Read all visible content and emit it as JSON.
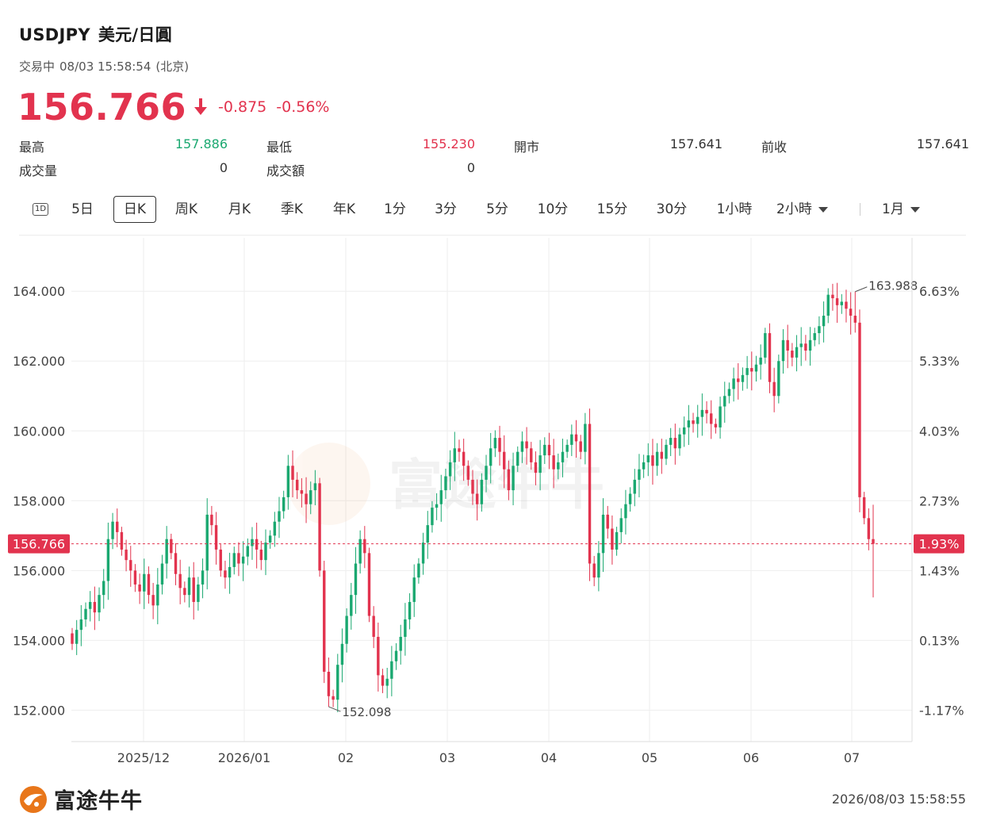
{
  "header": {
    "symbol": "USDJPY",
    "name": "美元/日圓"
  },
  "status": {
    "state": "交易中",
    "datetime": "08/03 15:58:54",
    "zone": "(北京)"
  },
  "quote": {
    "price": "156.766",
    "change": "-0.875",
    "change_pct": "-0.56%",
    "direction": "down"
  },
  "stats": [
    {
      "label": "最高",
      "value": "157.886"
    },
    {
      "label": "最低",
      "value": "155.230"
    },
    {
      "label": "開市",
      "value": "157.641"
    },
    {
      "label": "前收",
      "value": "157.641"
    },
    {
      "label": "成交量",
      "value": "0"
    },
    {
      "label": "成交額",
      "value": "0"
    }
  ],
  "tabs": [
    {
      "label": "1D"
    },
    {
      "label": "5日"
    },
    {
      "label": "日K",
      "active": true
    },
    {
      "label": "周K"
    },
    {
      "label": "月K"
    },
    {
      "label": "季K"
    },
    {
      "label": "年K"
    },
    {
      "label": "1分"
    },
    {
      "label": "3分"
    },
    {
      "label": "5分"
    },
    {
      "label": "10分"
    },
    {
      "label": "15分"
    },
    {
      "label": "30分"
    },
    {
      "label": "1小時"
    },
    {
      "label": "2小時"
    },
    {
      "label": "1月"
    }
  ],
  "colors": {
    "up": "#1aa870",
    "down": "#e2334e",
    "grid": "#eeeeee",
    "text": "#1a1a1a"
  },
  "chart_data": {
    "type": "candlestick",
    "x_tick_labels": [
      "2025/12",
      "2026/01",
      "02",
      "03",
      "04",
      "05",
      "06",
      "07"
    ],
    "y_tick_labels": [
      "164.000",
      "162.000",
      "160.000",
      "158.000",
      "156.000",
      "154.000",
      "152.000"
    ],
    "y_right_tick_labels": [
      "6.63%",
      "5.33%",
      "4.03%",
      "2.73%",
      "1.43%",
      "0.13%",
      "-1.17%"
    ],
    "ylim": [
      151.1,
      165.3
    ],
    "reference_line": {
      "value": 156.766,
      "label": "156.766",
      "pct_label": "1.93%"
    },
    "annotations": [
      {
        "label": "163.988",
        "value": 163.988,
        "type": "high"
      },
      {
        "label": "152.098",
        "value": 152.098,
        "type": "low"
      }
    ],
    "closes": [
      153.9,
      154.3,
      154.6,
      154.9,
      155.1,
      154.8,
      155.3,
      155.7,
      156.9,
      157.4,
      157.1,
      156.6,
      156.3,
      156.0,
      155.6,
      155.4,
      155.9,
      155.3,
      155.0,
      155.6,
      156.2,
      156.9,
      156.5,
      155.9,
      155.5,
      155.3,
      155.8,
      155.1,
      155.6,
      156.0,
      157.6,
      157.3,
      156.6,
      156.0,
      155.8,
      156.1,
      156.5,
      156.2,
      156.4,
      156.7,
      156.9,
      156.6,
      156.3,
      156.8,
      157.0,
      157.4,
      157.7,
      158.1,
      159.0,
      158.6,
      158.3,
      158.2,
      157.9,
      158.3,
      158.5,
      156.0,
      153.1,
      152.4,
      152.3,
      153.3,
      153.9,
      154.7,
      155.3,
      156.2,
      156.9,
      156.5,
      154.7,
      154.1,
      153.0,
      152.7,
      152.9,
      153.4,
      153.7,
      154.1,
      154.6,
      155.1,
      155.8,
      156.2,
      156.8,
      157.3,
      157.8,
      157.9,
      158.3,
      158.7,
      159.1,
      159.5,
      159.4,
      159.0,
      158.6,
      158.2,
      157.9,
      158.6,
      159.0,
      159.5,
      159.8,
      159.4,
      158.9,
      158.3,
      159.0,
      159.4,
      159.7,
      159.5,
      159.1,
      158.8,
      159.3,
      159.6,
      159.3,
      158.9,
      159.1,
      159.4,
      159.6,
      159.9,
      159.7,
      159.4,
      160.2,
      156.2,
      155.8,
      156.5,
      157.6,
      157.2,
      156.6,
      157.1,
      157.5,
      157.9,
      158.2,
      158.6,
      158.9,
      159.1,
      159.3,
      159.0,
      159.4,
      159.2,
      159.6,
      159.8,
      159.5,
      159.9,
      160.1,
      160.3,
      160.2,
      160.4,
      160.6,
      160.5,
      160.2,
      160.1,
      160.7,
      161.0,
      161.2,
      161.5,
      161.4,
      161.6,
      161.8,
      161.7,
      161.9,
      162.1,
      162.8,
      161.4,
      161.0,
      162.0,
      162.6,
      162.3,
      162.1,
      162.4,
      162.5,
      162.3,
      162.6,
      162.8,
      163.0,
      163.3,
      163.9,
      163.8,
      163.6,
      163.7,
      163.5,
      163.3,
      163.1,
      158.1,
      157.5,
      156.9,
      156.766
    ]
  },
  "footer": {
    "brand": "富途牛牛",
    "timestamp": "2026/08/03 15:58:55"
  }
}
